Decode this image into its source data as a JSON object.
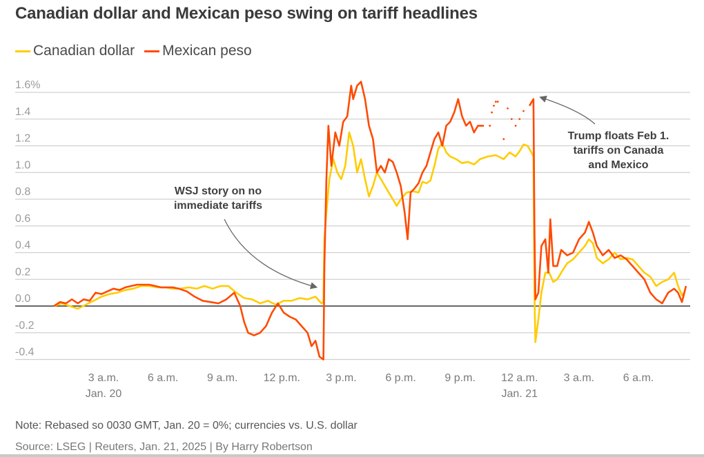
{
  "chart_data": {
    "type": "line",
    "title": "Canadian dollar and Mexican peso swing on tariff headlines",
    "xlabel": "",
    "ylabel": "",
    "x_unit": "hours since 12 a.m. Jan. 20 (GMT)",
    "xlim": [
      0,
      33
    ],
    "ylim": [
      -0.45,
      1.65
    ],
    "y_ticks": [
      1.6,
      1.4,
      1.2,
      1.0,
      0.8,
      0.6,
      0.4,
      0.2,
      0.0,
      -0.2,
      -0.4
    ],
    "y_tick_labels": [
      "1.6%",
      "1.4",
      "1.2",
      "1.0",
      "0.8",
      "0.6",
      "0.4",
      "0.2",
      "0.0",
      "-0.2",
      "-0.4"
    ],
    "x_ticks": [
      {
        "x": 3,
        "label": "3 a.m.",
        "sublabel": "Jan. 20"
      },
      {
        "x": 6,
        "label": "6 a.m.",
        "sublabel": ""
      },
      {
        "x": 9,
        "label": "9 a.m.",
        "sublabel": ""
      },
      {
        "x": 12,
        "label": "12 p.m.",
        "sublabel": ""
      },
      {
        "x": 15,
        "label": "3 p.m.",
        "sublabel": ""
      },
      {
        "x": 18,
        "label": "6 p.m.",
        "sublabel": ""
      },
      {
        "x": 21,
        "label": "9 p.m.",
        "sublabel": ""
      },
      {
        "x": 24,
        "label": "12 a.m.",
        "sublabel": "Jan. 21"
      },
      {
        "x": 27,
        "label": "3 a.m.",
        "sublabel": ""
      },
      {
        "x": 30,
        "label": "6 a.m.",
        "sublabel": ""
      }
    ],
    "grid": true,
    "legend_position": "top-left",
    "series": [
      {
        "name": "Canadian dollar",
        "color": "#FFCC00",
        "points": [
          [
            0.5,
            0.0
          ],
          [
            0.9,
            0.02
          ],
          [
            1.3,
            0.0
          ],
          [
            1.7,
            -0.02
          ],
          [
            2.1,
            0.01
          ],
          [
            2.5,
            0.04
          ],
          [
            2.9,
            0.07
          ],
          [
            3.3,
            0.09
          ],
          [
            3.7,
            0.1
          ],
          [
            4.1,
            0.12
          ],
          [
            4.5,
            0.13
          ],
          [
            4.9,
            0.15
          ],
          [
            5.3,
            0.15
          ],
          [
            5.7,
            0.14
          ],
          [
            6.1,
            0.14
          ],
          [
            6.5,
            0.13
          ],
          [
            6.9,
            0.13
          ],
          [
            7.3,
            0.14
          ],
          [
            7.7,
            0.13
          ],
          [
            8.1,
            0.15
          ],
          [
            8.5,
            0.13
          ],
          [
            8.9,
            0.15
          ],
          [
            9.3,
            0.15
          ],
          [
            9.7,
            0.1
          ],
          [
            10.1,
            0.06
          ],
          [
            10.5,
            0.05
          ],
          [
            10.9,
            0.02
          ],
          [
            11.3,
            0.04
          ],
          [
            11.7,
            0.01
          ],
          [
            12.1,
            0.04
          ],
          [
            12.5,
            0.04
          ],
          [
            12.9,
            0.06
          ],
          [
            13.3,
            0.05
          ],
          [
            13.7,
            0.07
          ],
          [
            14.0,
            0.02
          ],
          [
            14.1,
            0.03
          ],
          [
            14.15,
            0.5
          ],
          [
            14.25,
            0.7
          ],
          [
            14.4,
            0.95
          ],
          [
            14.6,
            1.1
          ],
          [
            14.8,
            1.0
          ],
          [
            15.0,
            0.95
          ],
          [
            15.2,
            1.05
          ],
          [
            15.4,
            1.3
          ],
          [
            15.6,
            1.2
          ],
          [
            15.8,
            1.0
          ],
          [
            16.0,
            1.1
          ],
          [
            16.2,
            0.95
          ],
          [
            16.4,
            0.82
          ],
          [
            16.6,
            0.9
          ],
          [
            16.8,
            1.0
          ],
          [
            17.0,
            0.95
          ],
          [
            17.2,
            0.9
          ],
          [
            17.4,
            0.85
          ],
          [
            17.6,
            0.8
          ],
          [
            17.8,
            0.75
          ],
          [
            18.0,
            0.8
          ],
          [
            18.3,
            0.85
          ],
          [
            18.6,
            0.86
          ],
          [
            18.9,
            0.85
          ],
          [
            19.1,
            0.93
          ],
          [
            19.3,
            0.92
          ],
          [
            19.5,
            0.94
          ],
          [
            19.7,
            1.05
          ],
          [
            19.9,
            1.18
          ],
          [
            20.1,
            1.22
          ],
          [
            20.3,
            1.15
          ],
          [
            20.5,
            1.12
          ],
          [
            20.8,
            1.1
          ],
          [
            21.1,
            1.07
          ],
          [
            21.4,
            1.08
          ],
          [
            21.7,
            1.06
          ],
          [
            22.0,
            1.1
          ],
          [
            22.4,
            1.12
          ],
          [
            22.8,
            1.13
          ],
          [
            23.2,
            1.1
          ],
          [
            23.5,
            1.15
          ],
          [
            23.8,
            1.12
          ],
          [
            24.0,
            1.16
          ],
          [
            24.2,
            1.21
          ],
          [
            24.4,
            1.2
          ],
          [
            24.6,
            1.15
          ],
          [
            24.7,
            1.12
          ],
          [
            24.75,
            0.1
          ],
          [
            24.8,
            -0.27
          ],
          [
            24.95,
            -0.1
          ],
          [
            25.1,
            0.1
          ],
          [
            25.3,
            0.25
          ],
          [
            25.5,
            0.25
          ],
          [
            25.7,
            0.18
          ],
          [
            25.9,
            0.2
          ],
          [
            26.1,
            0.25
          ],
          [
            26.4,
            0.32
          ],
          [
            26.7,
            0.35
          ],
          [
            27.0,
            0.4
          ],
          [
            27.3,
            0.45
          ],
          [
            27.5,
            0.5
          ],
          [
            27.7,
            0.47
          ],
          [
            27.9,
            0.36
          ],
          [
            28.2,
            0.32
          ],
          [
            28.5,
            0.35
          ],
          [
            28.8,
            0.4
          ],
          [
            29.1,
            0.35
          ],
          [
            29.4,
            0.36
          ],
          [
            29.7,
            0.35
          ],
          [
            30.0,
            0.3
          ],
          [
            30.3,
            0.25
          ],
          [
            30.6,
            0.22
          ],
          [
            30.9,
            0.15
          ],
          [
            31.2,
            0.18
          ],
          [
            31.5,
            0.2
          ],
          [
            31.8,
            0.25
          ],
          [
            32.0,
            0.15
          ],
          [
            32.2,
            0.08
          ],
          [
            32.3,
            0.1
          ]
        ]
      },
      {
        "name": "Mexican peso",
        "color": "#FF4A00",
        "points": [
          [
            0.5,
            0.0
          ],
          [
            0.8,
            0.03
          ],
          [
            1.1,
            0.02
          ],
          [
            1.4,
            0.05
          ],
          [
            1.7,
            0.02
          ],
          [
            2.0,
            0.05
          ],
          [
            2.3,
            0.04
          ],
          [
            2.6,
            0.1
          ],
          [
            2.9,
            0.09
          ],
          [
            3.2,
            0.11
          ],
          [
            3.5,
            0.13
          ],
          [
            3.8,
            0.12
          ],
          [
            4.1,
            0.14
          ],
          [
            4.4,
            0.15
          ],
          [
            4.7,
            0.16
          ],
          [
            5.0,
            0.16
          ],
          [
            5.3,
            0.16
          ],
          [
            5.6,
            0.15
          ],
          [
            5.9,
            0.14
          ],
          [
            6.2,
            0.14
          ],
          [
            6.5,
            0.14
          ],
          [
            6.8,
            0.13
          ],
          [
            7.2,
            0.11
          ],
          [
            7.6,
            0.07
          ],
          [
            8.0,
            0.04
          ],
          [
            8.4,
            0.03
          ],
          [
            8.8,
            0.02
          ],
          [
            9.2,
            0.05
          ],
          [
            9.6,
            0.1
          ],
          [
            9.9,
            0.0
          ],
          [
            10.1,
            -0.12
          ],
          [
            10.3,
            -0.2
          ],
          [
            10.6,
            -0.22
          ],
          [
            10.9,
            -0.2
          ],
          [
            11.2,
            -0.15
          ],
          [
            11.5,
            -0.05
          ],
          [
            11.8,
            0.02
          ],
          [
            12.1,
            -0.05
          ],
          [
            12.4,
            -0.08
          ],
          [
            12.7,
            -0.1
          ],
          [
            13.0,
            -0.15
          ],
          [
            13.3,
            -0.2
          ],
          [
            13.5,
            -0.3
          ],
          [
            13.7,
            -0.26
          ],
          [
            13.9,
            -0.38
          ],
          [
            14.1,
            -0.4
          ],
          [
            14.15,
            0.3
          ],
          [
            14.25,
            0.95
          ],
          [
            14.35,
            1.35
          ],
          [
            14.5,
            1.05
          ],
          [
            14.7,
            1.3
          ],
          [
            14.9,
            1.2
          ],
          [
            15.1,
            1.38
          ],
          [
            15.3,
            1.42
          ],
          [
            15.5,
            1.65
          ],
          [
            15.6,
            1.55
          ],
          [
            15.8,
            1.65
          ],
          [
            16.0,
            1.68
          ],
          [
            16.2,
            1.55
          ],
          [
            16.4,
            1.35
          ],
          [
            16.6,
            1.25
          ],
          [
            16.8,
            1.0
          ],
          [
            17.0,
            1.05
          ],
          [
            17.2,
            1.0
          ],
          [
            17.4,
            1.1
          ],
          [
            17.6,
            1.08
          ],
          [
            17.8,
            1.0
          ],
          [
            18.0,
            0.9
          ],
          [
            18.2,
            0.7
          ],
          [
            18.35,
            0.5
          ],
          [
            18.5,
            0.85
          ],
          [
            18.7,
            0.88
          ],
          [
            18.9,
            0.92
          ],
          [
            19.1,
            1.0
          ],
          [
            19.3,
            1.05
          ],
          [
            19.5,
            1.15
          ],
          [
            19.7,
            1.25
          ],
          [
            19.9,
            1.3
          ],
          [
            20.1,
            1.2
          ],
          [
            20.3,
            1.35
          ],
          [
            20.5,
            1.38
          ],
          [
            20.7,
            1.45
          ],
          [
            20.9,
            1.55
          ],
          [
            21.1,
            1.42
          ],
          [
            21.3,
            1.35
          ],
          [
            21.5,
            1.38
          ],
          [
            21.7,
            1.3
          ],
          [
            21.9,
            1.35
          ],
          [
            22.2,
            1.35
          ],
          [
            24.5,
            1.5
          ],
          [
            24.7,
            1.55
          ],
          [
            24.75,
            0.6
          ],
          [
            24.8,
            0.05
          ],
          [
            24.95,
            0.1
          ],
          [
            25.1,
            0.45
          ],
          [
            25.3,
            0.5
          ],
          [
            25.45,
            0.25
          ],
          [
            25.55,
            0.65
          ],
          [
            25.7,
            0.3
          ],
          [
            25.9,
            0.3
          ],
          [
            26.1,
            0.42
          ],
          [
            26.4,
            0.38
          ],
          [
            26.7,
            0.4
          ],
          [
            27.0,
            0.5
          ],
          [
            27.3,
            0.55
          ],
          [
            27.5,
            0.63
          ],
          [
            27.7,
            0.55
          ],
          [
            27.9,
            0.45
          ],
          [
            28.2,
            0.38
          ],
          [
            28.5,
            0.42
          ],
          [
            28.8,
            0.36
          ],
          [
            29.1,
            0.38
          ],
          [
            29.4,
            0.35
          ],
          [
            29.7,
            0.3
          ],
          [
            30.0,
            0.25
          ],
          [
            30.3,
            0.2
          ],
          [
            30.6,
            0.1
          ],
          [
            30.9,
            0.05
          ],
          [
            31.2,
            0.02
          ],
          [
            31.5,
            0.1
          ],
          [
            31.8,
            0.13
          ],
          [
            32.0,
            0.1
          ],
          [
            32.2,
            0.03
          ],
          [
            32.4,
            0.15
          ]
        ],
        "sparse_points": [
          [
            22.5,
            1.35
          ],
          [
            22.6,
            1.45
          ],
          [
            22.7,
            1.5
          ],
          [
            22.8,
            1.53
          ],
          [
            22.9,
            1.53
          ],
          [
            23.2,
            1.25
          ],
          [
            23.4,
            1.48
          ],
          [
            23.6,
            1.4
          ],
          [
            23.8,
            1.35
          ],
          [
            24.0,
            1.4
          ],
          [
            24.2,
            1.46
          ]
        ]
      }
    ],
    "annotations": [
      {
        "text_lines": [
          "WSJ story on no",
          "immediate tariffs"
        ],
        "points_to": [
          14.0,
          0.07
        ]
      },
      {
        "text_lines": [
          "Trump floats Feb 1.",
          "tariffs on Canada",
          "and Mexico"
        ],
        "points_to": [
          24.8,
          1.5
        ]
      }
    ]
  },
  "legend": [
    {
      "label": "Canadian dollar",
      "color": "#FFCC00"
    },
    {
      "label": "Mexican peso",
      "color": "#FF4A00"
    }
  ],
  "footer": {
    "note": "Note: Rebased so 0030 GMT, Jan. 20 = 0%; currencies vs. U.S. dollar",
    "source": "Source: LSEG | Reuters, Jan. 21, 2025 | By Harry Robertson"
  }
}
